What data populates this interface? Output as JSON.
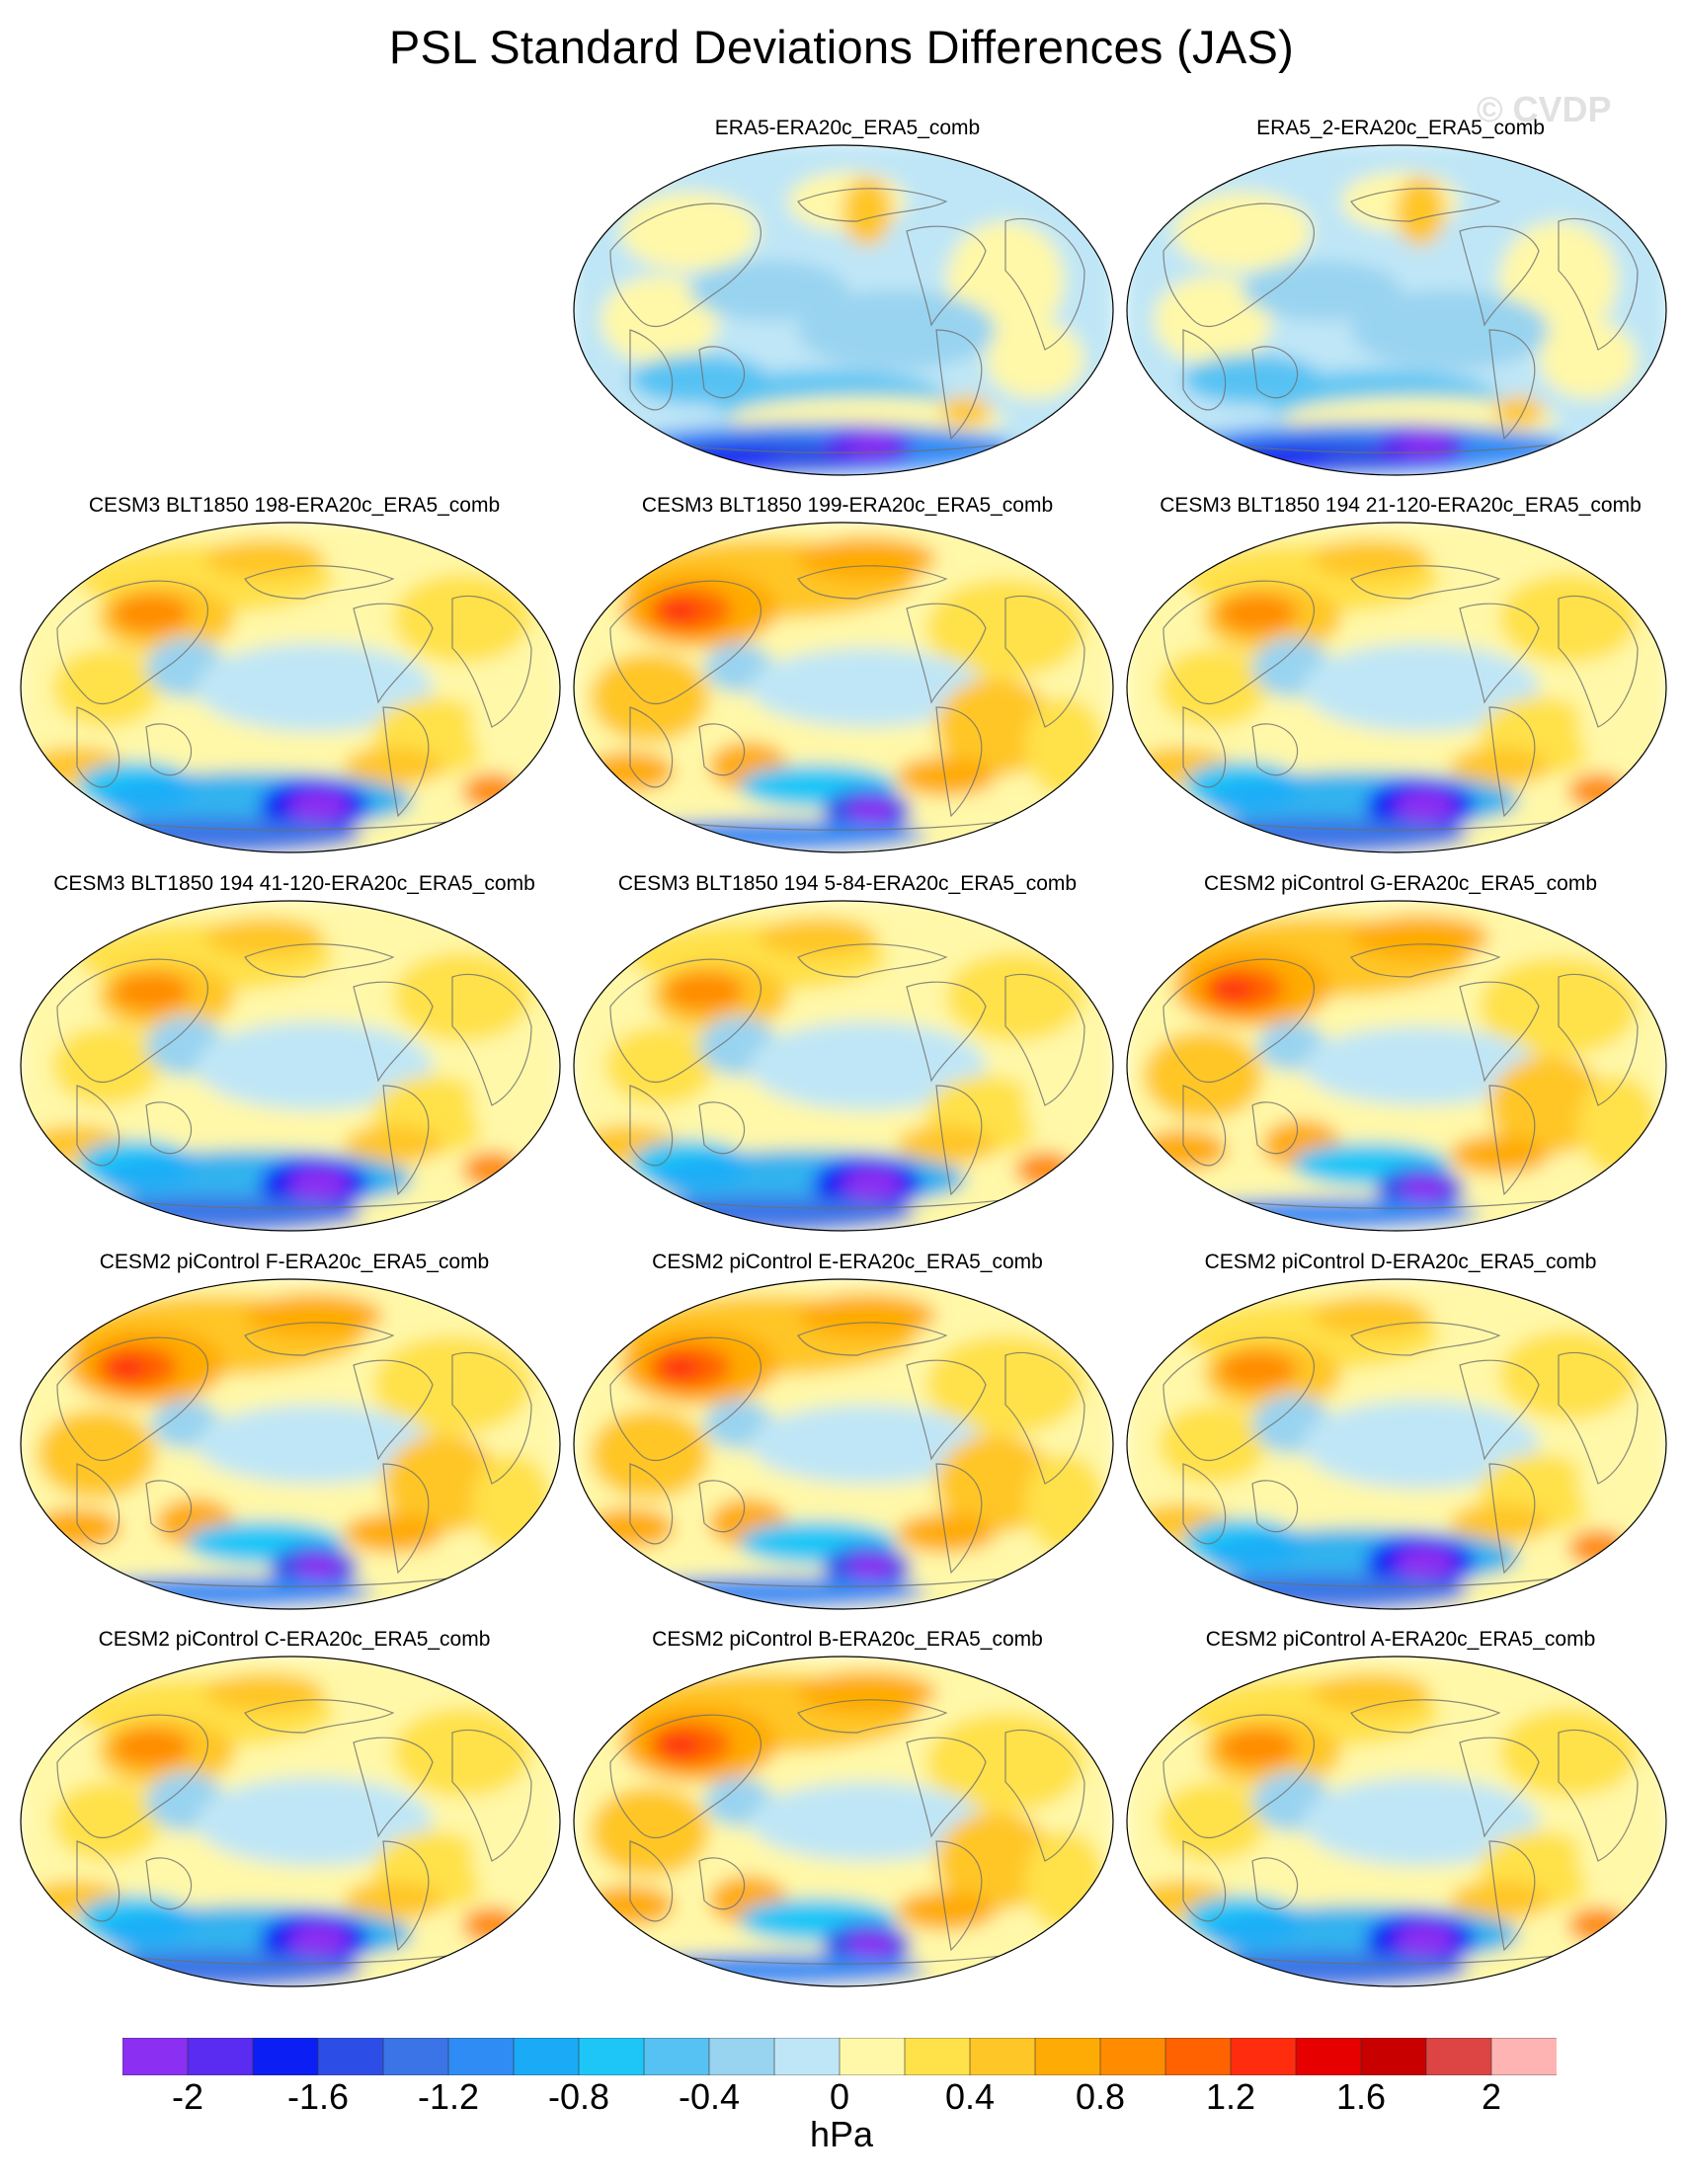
{
  "title": "PSL Standard Deviations Differences (JAS)",
  "watermark": "© CVDP",
  "colorbar": {
    "unit": "hPa",
    "colors": [
      "#8b2ff2",
      "#5a2bf0",
      "#0b1ff5",
      "#2d4ee6",
      "#3b74e6",
      "#2f8cf5",
      "#1aaaf6",
      "#1ec6f7",
      "#56c2f3",
      "#98d3f0",
      "#bfe6f6",
      "#fff8a8",
      "#ffe14a",
      "#ffc628",
      "#ffab06",
      "#ff8c00",
      "#ff6200",
      "#ff2d0d",
      "#e60000",
      "#c80000",
      "#dd4444",
      "#ffb4b4"
    ],
    "ticks": [
      "-2",
      "-1.6",
      "-1.2",
      "-0.8",
      "-0.4",
      "0",
      "0.4",
      "0.8",
      "1.2",
      "1.6",
      "2"
    ]
  },
  "panels": [
    {
      "title": "ERA5-ERA20c_ERA5_comb",
      "style": 0
    },
    {
      "title": "ERA5_2-ERA20c_ERA5_comb",
      "style": 0
    },
    {
      "title": "CESM3 BLT1850 198-ERA20c_ERA5_comb",
      "style": 1
    },
    {
      "title": "CESM3 BLT1850 199-ERA20c_ERA5_comb",
      "style": 2
    },
    {
      "title": "CESM3 BLT1850 194 21-120-ERA20c_ERA5_comb",
      "style": 1
    },
    {
      "title": "CESM3 BLT1850 194 41-120-ERA20c_ERA5_comb",
      "style": 1
    },
    {
      "title": "CESM3 BLT1850 194 5-84-ERA20c_ERA5_comb",
      "style": 1
    },
    {
      "title": "CESM2 piControl G-ERA20c_ERA5_comb",
      "style": 2
    },
    {
      "title": "CESM2 piControl F-ERA20c_ERA5_comb",
      "style": 2
    },
    {
      "title": "CESM2 piControl E-ERA20c_ERA5_comb",
      "style": 2
    },
    {
      "title": "CESM2 piControl D-ERA20c_ERA5_comb",
      "style": 1
    },
    {
      "title": "CESM2 piControl C-ERA20c_ERA5_comb",
      "style": 1
    },
    {
      "title": "CESM2 piControl B-ERA20c_ERA5_comb",
      "style": 2
    },
    {
      "title": "CESM2 piControl A-ERA20c_ERA5_comb",
      "style": 1
    }
  ]
}
